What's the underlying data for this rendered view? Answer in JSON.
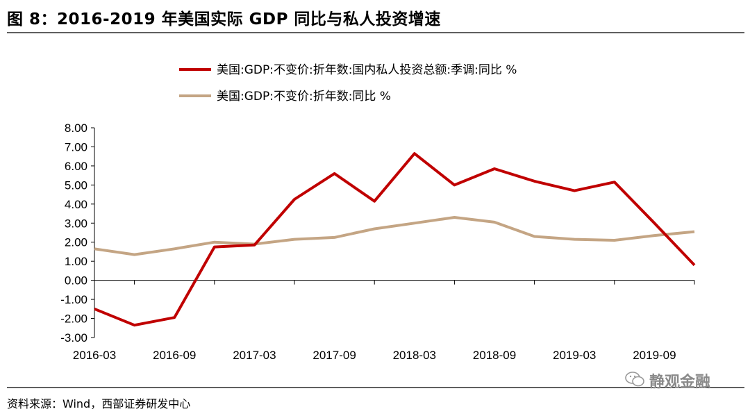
{
  "figure": {
    "title": "图 8：2016-2019 年美国实际 GDP 同比与私人投资增速",
    "source": "资料来源：Wind，西部证券研发中心",
    "watermark": "静观金融"
  },
  "colors": {
    "series_investment": "#c00000",
    "series_gdp": "#c4a584",
    "axis": "#000000",
    "rule": "#000000"
  },
  "chart_data": {
    "type": "line",
    "title": "",
    "xlabel": "",
    "ylabel": "",
    "ylim": [
      -3,
      8
    ],
    "y_ticks": [
      "8.00",
      "7.00",
      "6.00",
      "5.00",
      "4.00",
      "3.00",
      "2.00",
      "1.00",
      "0.00",
      "-1.00",
      "-2.00",
      "-3.00"
    ],
    "y_tick_values": [
      8,
      7,
      6,
      5,
      4,
      3,
      2,
      1,
      0,
      -1,
      -2,
      -3
    ],
    "x": [
      "2016-03",
      "2016-06",
      "2016-09",
      "2016-12",
      "2017-03",
      "2017-06",
      "2017-09",
      "2017-12",
      "2018-03",
      "2018-06",
      "2018-09",
      "2018-12",
      "2019-03",
      "2019-06",
      "2019-09",
      "2019-12"
    ],
    "x_tick_labels": [
      "2016-03",
      "2016-09",
      "2017-03",
      "2017-09",
      "2018-03",
      "2018-09",
      "2019-03",
      "2019-09"
    ],
    "legend_position": "top",
    "grid": false,
    "series": [
      {
        "name": "美国:GDP:不变价:折年数:国内私人投资总额:季调:同比 %",
        "values": [
          -1.5,
          -2.35,
          -1.95,
          1.75,
          1.85,
          4.25,
          5.6,
          4.15,
          6.65,
          5.0,
          5.85,
          5.2,
          4.7,
          5.15,
          3.0,
          0.8
        ]
      },
      {
        "name": "美国:GDP:不变价:折年数:同比 %",
        "values": [
          1.65,
          1.35,
          1.65,
          2.0,
          1.9,
          2.15,
          2.25,
          2.7,
          3.0,
          3.3,
          3.05,
          2.3,
          2.15,
          2.1,
          2.35,
          2.55
        ]
      }
    ]
  }
}
